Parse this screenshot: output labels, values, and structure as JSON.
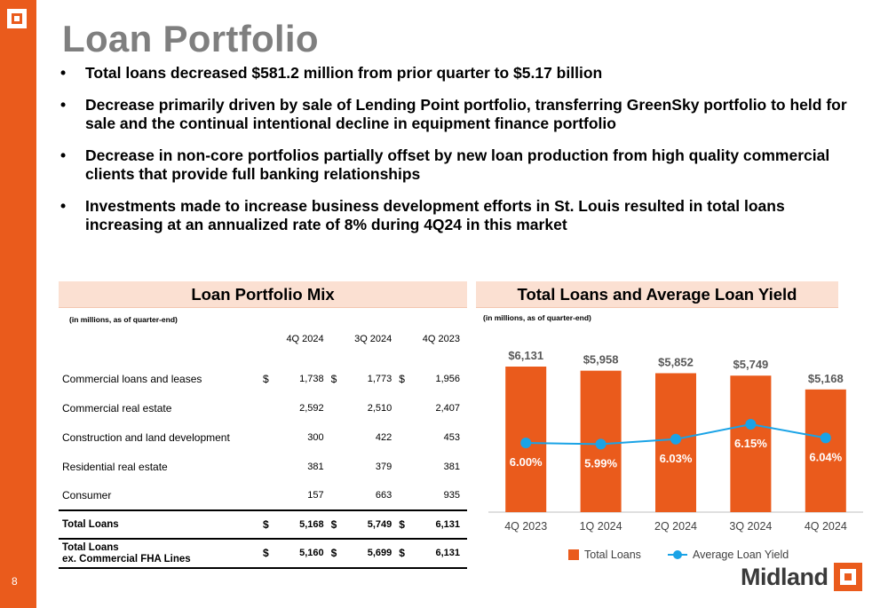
{
  "page": {
    "number": "8",
    "title": "Loan Portfolio",
    "brand": "Midland"
  },
  "bullets": [
    "Total loans decreased $581.2 million from prior quarter to $5.17 billion",
    "Decrease primarily driven by sale of Lending Point portfolio, transferring GreenSky portfolio to held for sale and the continual intentional decline in equipment finance portfolio",
    "Decrease in non-core portfolios partially offset by new loan production from high quality commercial clients that provide full banking relationships",
    "Investments made to increase business development efforts in St. Louis resulted in total loans increasing at an annualized rate of 8% during 4Q24 in this market"
  ],
  "mix": {
    "heading": "Loan Portfolio Mix",
    "note": "(in millions, as of quarter-end)",
    "columns": [
      "4Q 2024",
      "3Q 2024",
      "4Q 2023"
    ],
    "currency": "$",
    "rows": [
      {
        "label": "Commercial loans and leases",
        "values": [
          "1,738",
          "1,773",
          "1,956"
        ]
      },
      {
        "label": "Commercial real estate",
        "values": [
          "2,592",
          "2,510",
          "2,407"
        ]
      },
      {
        "label": "Construction and land development",
        "values": [
          "300",
          "422",
          "453"
        ]
      },
      {
        "label": "Residential real estate",
        "values": [
          "381",
          "379",
          "381"
        ]
      },
      {
        "label": "Consumer",
        "values": [
          "157",
          "663",
          "935"
        ]
      }
    ],
    "total": {
      "label": "Total Loans",
      "values": [
        "5,168",
        "5,749",
        "6,131"
      ]
    },
    "total_ex": {
      "label_line1": "Total Loans",
      "label_line2": "ex. Commercial FHA Lines",
      "values": [
        "5,160",
        "5,699",
        "6,131"
      ]
    }
  },
  "yield_panel": {
    "heading": "Total Loans and Average Loan Yield",
    "note": "(in millions, as of quarter-end)"
  },
  "chart_data": {
    "type": "bar",
    "categories": [
      "4Q 2023",
      "1Q 2024",
      "2Q 2024",
      "3Q 2024",
      "4Q 2024"
    ],
    "series": [
      {
        "name": "Total Loans",
        "type": "bar",
        "values": [
          6131,
          5958,
          5852,
          5749,
          5168
        ],
        "labels": [
          "$6,131",
          "$5,958",
          "$5,852",
          "$5,749",
          "$5,168"
        ],
        "color": "#ea5b1c"
      },
      {
        "name": "Average Loan Yield",
        "type": "line",
        "values": [
          6.0,
          5.99,
          6.03,
          6.15,
          6.04
        ],
        "labels": [
          "6.00%",
          "5.99%",
          "6.03%",
          "6.15%",
          "6.04%"
        ],
        "color": "#1aa3e6"
      }
    ],
    "legend": "bottom",
    "grid": false
  }
}
